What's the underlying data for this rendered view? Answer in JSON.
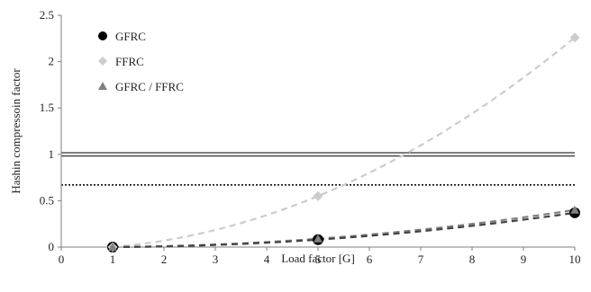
{
  "chart_data": {
    "type": "scatter",
    "xlabel": "Load factor [G]",
    "ylabel": "Hashin compressoin factor",
    "xlim": [
      0,
      10
    ],
    "ylim": [
      0,
      2.5
    ],
    "xticks": [
      0,
      1,
      2,
      3,
      4,
      5,
      6,
      7,
      8,
      9,
      10
    ],
    "yticks": [
      0,
      0.5,
      1,
      1.5,
      2,
      2.5
    ],
    "xtick_labels": [
      "0",
      "1",
      "2",
      "3",
      "4",
      "5",
      "6",
      "7",
      "8",
      "9",
      "10"
    ],
    "ytick_labels": [
      "0",
      "0.5",
      "1",
      "1.5",
      "2",
      "2.5"
    ],
    "grid": false,
    "legend_position": "top-left",
    "series": [
      {
        "name": "GFRC",
        "marker": "circle",
        "color": "#000000",
        "trend_color": "#444444",
        "x": [
          1,
          5,
          10
        ],
        "y": [
          0.0,
          0.08,
          0.37
        ]
      },
      {
        "name": "FFRC",
        "marker": "diamond",
        "color": "#cccccc",
        "trend_color": "#cccccc",
        "x": [
          1,
          5,
          10
        ],
        "y": [
          0.0,
          0.55,
          2.26
        ]
      },
      {
        "name": "GFRC / FFRC",
        "marker": "triangle",
        "color": "#808080",
        "trend_color": "#808080",
        "x": [
          1,
          5,
          10
        ],
        "y": [
          0.0,
          0.09,
          0.4
        ]
      }
    ],
    "reference_lines": [
      {
        "style": "double",
        "y": 1.0,
        "color": "#333333"
      },
      {
        "style": "dotted",
        "y": 0.67,
        "color": "#111111"
      }
    ]
  }
}
